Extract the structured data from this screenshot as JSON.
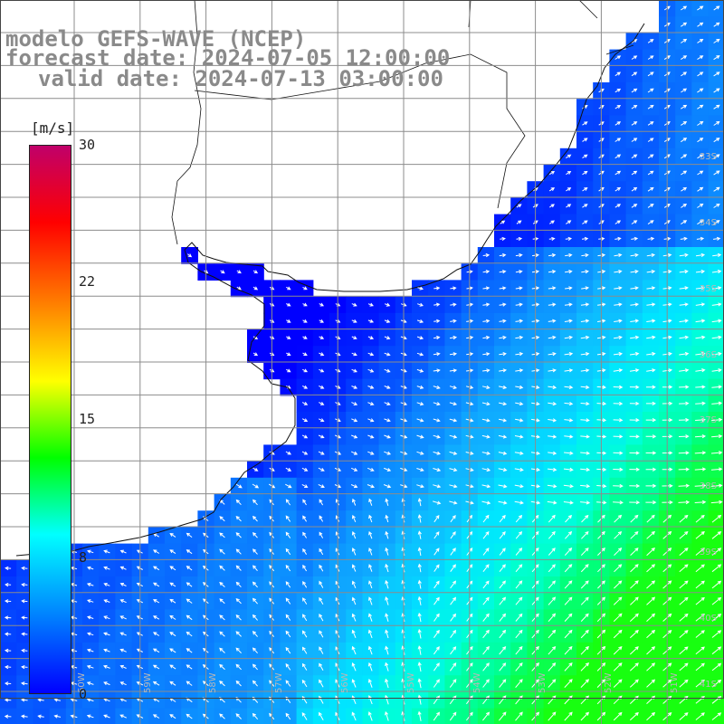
{
  "title": {
    "line1": "modelo GEFS-WAVE (NCEP)",
    "line2": "forecast date: 2024-07-05 12:00:00",
    "line3": "valid date: 2024-07-13 03:00:00"
  },
  "colorbar": {
    "unit": "[m/s]",
    "ticks": [
      "30",
      "22",
      "15",
      "8",
      "0"
    ],
    "min": 0,
    "max": 30,
    "colors": [
      "#0000ff",
      "#0080ff",
      "#00ffff",
      "#00ff00",
      "#ffff00",
      "#ff8000",
      "#ff0000",
      "#c0006a"
    ]
  },
  "lat_labels": [
    "33S",
    "34S",
    "35S",
    "36S",
    "37S",
    "38S",
    "39S",
    "40S",
    "41S"
  ],
  "lon_labels": [
    "60W",
    "59W",
    "58W",
    "57W",
    "56W",
    "55W",
    "54W",
    "53W",
    "52W",
    "51W"
  ],
  "field": {
    "name": "wind speed and direction",
    "colors": {
      "land": "#ffffff",
      "coast": "#111111",
      "grid": "#8c8c8c",
      "arrow": "#ffffff"
    }
  }
}
